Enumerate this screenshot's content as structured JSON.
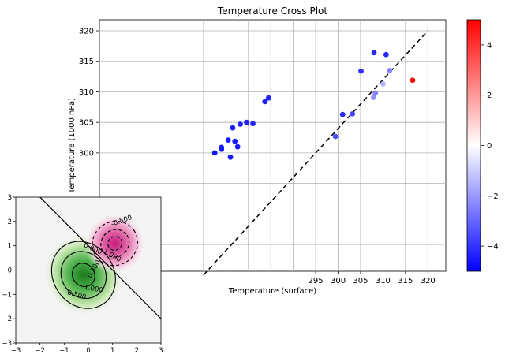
{
  "chart_data": [
    {
      "type": "scatter",
      "title": "Temperature Cross Plot",
      "xlabel": "Temperature (surface)",
      "ylabel": "Temperature (1000 hPa)",
      "xlim": [
        270,
        322
      ],
      "ylim": [
        280,
        322
      ],
      "grid": true,
      "x_ticks": [
        295,
        300,
        305,
        310,
        315,
        320
      ],
      "y_ticks": [
        300,
        305,
        310,
        315,
        320
      ],
      "reference_line": {
        "from": [
          270,
          280
        ],
        "to": [
          320,
          320
        ],
        "style": "dashed",
        "color": "#000000"
      },
      "points": [
        {
          "x": 272.5,
          "y": 300.0,
          "c": -4.6
        },
        {
          "x": 274.0,
          "y": 300.6,
          "c": -4.5
        },
        {
          "x": 274.0,
          "y": 300.9,
          "c": -4.5
        },
        {
          "x": 275.5,
          "y": 302.1,
          "c": -4.5
        },
        {
          "x": 276.5,
          "y": 304.1,
          "c": -4.5
        },
        {
          "x": 276.0,
          "y": 299.3,
          "c": -4.6
        },
        {
          "x": 277.0,
          "y": 301.9,
          "c": -4.5
        },
        {
          "x": 277.6,
          "y": 301.0,
          "c": -4.5
        },
        {
          "x": 278.2,
          "y": 304.7,
          "c": -4.4
        },
        {
          "x": 279.6,
          "y": 305.0,
          "c": -4.4
        },
        {
          "x": 281.0,
          "y": 304.8,
          "c": -4.3
        },
        {
          "x": 283.7,
          "y": 308.4,
          "c": -4.4
        },
        {
          "x": 284.5,
          "y": 309.0,
          "c": -4.3
        },
        {
          "x": 299.4,
          "y": 302.7,
          "c": -3.5
        },
        {
          "x": 301.0,
          "y": 306.3,
          "c": -4.2
        },
        {
          "x": 303.2,
          "y": 306.4,
          "c": -3.6
        },
        {
          "x": 305.1,
          "y": 313.4,
          "c": -4.1
        },
        {
          "x": 307.9,
          "y": 309.1,
          "c": -2.2
        },
        {
          "x": 308.3,
          "y": 309.8,
          "c": -2.5
        },
        {
          "x": 308.0,
          "y": 316.4,
          "c": -4.2
        },
        {
          "x": 310.0,
          "y": 311.3,
          "c": -1.5
        },
        {
          "x": 310.7,
          "y": 316.1,
          "c": -4.2
        },
        {
          "x": 311.5,
          "y": 313.5,
          "c": -2.4
        },
        {
          "x": 316.6,
          "y": 311.9,
          "c": 4.9
        }
      ],
      "colorbar": {
        "min": -5,
        "max": 5,
        "ticks": [
          -4,
          -2,
          0,
          2,
          4
        ],
        "colormap": "bwr",
        "low_color": "#0000ff",
        "mid_color": "#ffffff",
        "high_color": "#ff0000"
      }
    },
    {
      "type": "contour",
      "xlim": [
        -3,
        3
      ],
      "ylim": [
        -3,
        3
      ],
      "x_ticks": [
        -3,
        -2,
        -1,
        0,
        1,
        2,
        3
      ],
      "y_ticks": [
        -3,
        -2,
        -1,
        0,
        1,
        2,
        3
      ],
      "colormap": "PiYG",
      "contour_labels": [
        "-0.500",
        "-1.000",
        "0.000",
        "0.500",
        "1.000",
        "0.500"
      ],
      "zero_line": {
        "from": [
          -2,
          3
        ],
        "to": [
          3,
          -2
        ]
      },
      "green_center": [
        -0.2,
        -0.2
      ],
      "pink_center": [
        1.1,
        1.1
      ],
      "negative_color": "#c51b7d",
      "positive_color": "#2a9b2a"
    }
  ]
}
